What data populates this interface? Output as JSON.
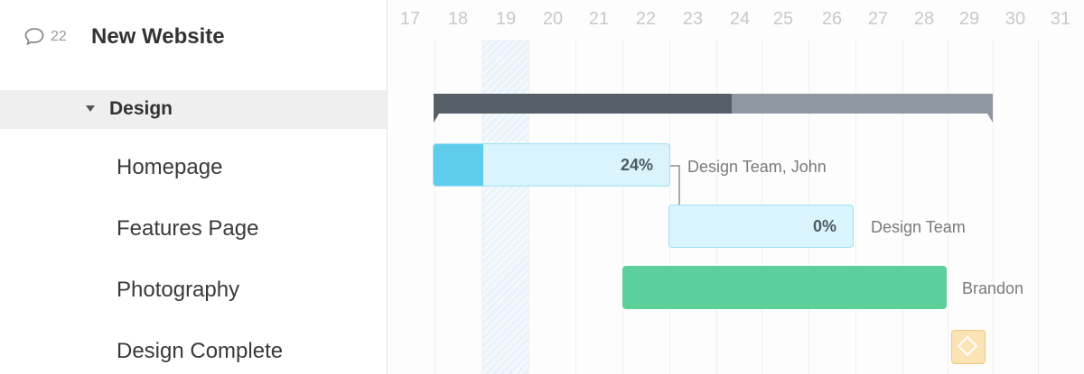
{
  "project": {
    "comment_count": "22",
    "title": "New Website"
  },
  "group": {
    "label": "Design"
  },
  "tasks": [
    {
      "label": "Homepage"
    },
    {
      "label": "Features Page"
    },
    {
      "label": "Photography"
    },
    {
      "label": "Design Complete"
    }
  ],
  "timeline": {
    "days": [
      "17",
      "18",
      "19",
      "20",
      "21",
      "22",
      "23",
      "24",
      "25",
      "26",
      "27",
      "28",
      "29",
      "30",
      "31"
    ]
  },
  "bars": {
    "homepage": {
      "percent": "24%",
      "assignee": "Design Team, John",
      "progress": 0.24
    },
    "features": {
      "percent": "0%",
      "assignee": "Design Team",
      "progress": 0
    },
    "photography": {
      "assignee": "Brandon"
    }
  },
  "colors": {
    "summary_done": "#565f67",
    "summary_rest": "#8f98a0",
    "task_light": "#d9f4fc",
    "task_progress": "#5dcdeb",
    "task_green": "#5dcf9a",
    "milestone": "#fbe3b5"
  }
}
